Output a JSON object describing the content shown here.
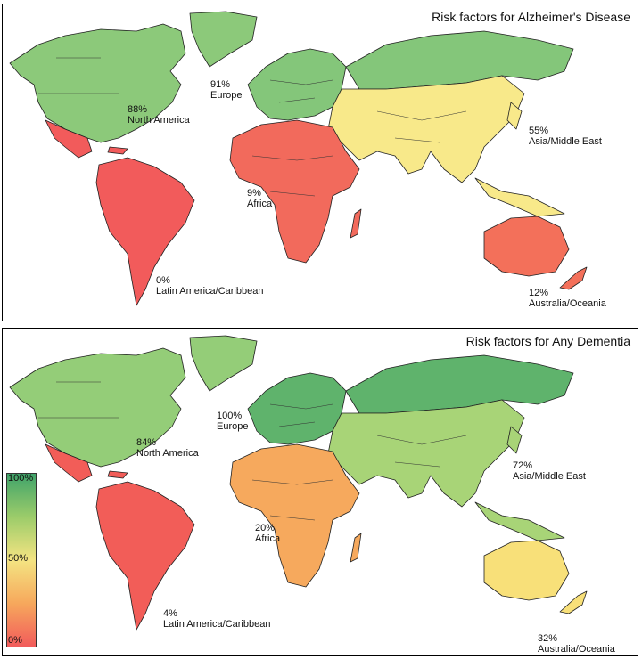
{
  "maps": [
    {
      "title": "Risk factors for Alzheimer's Disease",
      "regions": {
        "north_america": {
          "pct": "88%",
          "name": "North America",
          "color": "#8cc97a"
        },
        "europe": {
          "pct": "91%",
          "name": "Europe",
          "color": "#84c67a"
        },
        "asia": {
          "pct": "55%",
          "name": "Asia/Middle East",
          "color": "#f8e98a"
        },
        "africa": {
          "pct": "9%",
          "name": "Africa",
          "color": "#f26a5c"
        },
        "latin": {
          "pct": "0%",
          "name": "Latin America/Caribbean",
          "color": "#f25b5b"
        },
        "oceania": {
          "pct": "12%",
          "name": "Australia/Oceania",
          "color": "#f3705a"
        }
      }
    },
    {
      "title": "Risk factors for Any Dementia",
      "regions": {
        "north_america": {
          "pct": "84%",
          "name": "North America",
          "color": "#94cd78"
        },
        "europe": {
          "pct": "100%",
          "name": "Europe",
          "color": "#5fb36c"
        },
        "asia": {
          "pct": "72%",
          "name": "Asia/Middle East",
          "color": "#a8d477"
        },
        "africa": {
          "pct": "20%",
          "name": "Africa",
          "color": "#f6a95d"
        },
        "latin": {
          "pct": "4%",
          "name": "Latin America/Caribbean",
          "color": "#f25d58"
        },
        "oceania": {
          "pct": "32%",
          "name": "Australia/Oceania",
          "color": "#f8e079"
        }
      }
    }
  ],
  "legend": {
    "ticks": [
      "100%",
      "50%",
      "0%"
    ]
  }
}
